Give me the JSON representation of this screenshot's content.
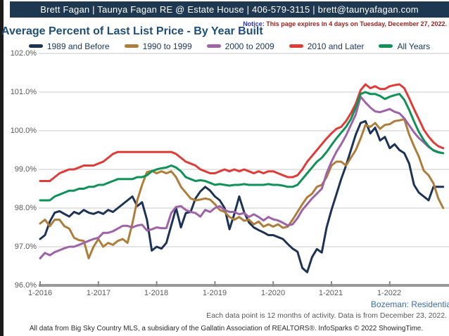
{
  "header": {
    "agent_banner": "Brett Fagan | Taunya Fagan RE @ Estate House | 406-579-3115 | brett@taunyafagan.com"
  },
  "notice": {
    "label": "Notice:",
    "text": " This page expires in 4 days on Tuesday, December 27, 2022."
  },
  "title": "Average Percent of Last List Price - By Year Built",
  "chart_data": {
    "type": "line",
    "title": "Average Percent of Last List Price - By Year Built",
    "x_unit": "month",
    "x_start": "1-2016",
    "x_end": "12-2022",
    "x_tick_labels": [
      "1-2016",
      "1-2017",
      "1-2018",
      "1-2019",
      "1-2020",
      "1-2021",
      "1-2022"
    ],
    "x_tick_month_indices": [
      0,
      12,
      24,
      36,
      48,
      60,
      72
    ],
    "ylim": [
      96.0,
      102.0
    ],
    "y_tick_values": [
      102,
      101,
      100,
      99,
      98,
      97,
      96
    ],
    "y_tick_labels": [
      "102.0%",
      "101.0%",
      "100.0%",
      "99.0%",
      "98.0%",
      "97.0%",
      "96.0%"
    ],
    "grid": "horizontal",
    "legend_position": "top",
    "series": [
      {
        "name": "1989 and Before",
        "color": "#1d3356",
        "values": [
          97.2,
          97.3,
          97.65,
          97.88,
          97.92,
          97.85,
          97.78,
          97.9,
          97.85,
          97.95,
          97.88,
          97.85,
          97.9,
          97.85,
          97.95,
          97.9,
          98.0,
          98.1,
          98.2,
          98.3,
          98.05,
          98.15,
          97.7,
          96.9,
          97.0,
          96.95,
          97.1,
          97.55,
          98.0,
          97.5,
          97.87,
          97.9,
          98.25,
          98.43,
          98.55,
          98.45,
          98.3,
          98.2,
          98.0,
          97.45,
          97.85,
          98.3,
          97.9,
          97.63,
          97.5,
          97.43,
          97.37,
          97.3,
          97.3,
          97.25,
          97.2,
          97.07,
          96.95,
          96.87,
          96.45,
          96.34,
          96.73,
          96.94,
          96.85,
          97.5,
          97.95,
          98.35,
          98.75,
          99.1,
          99.5,
          99.9,
          100.2,
          100.25,
          99.93,
          100.08,
          99.75,
          99.84,
          99.55,
          99.65,
          99.5,
          99.42,
          99.15,
          98.6,
          98.4,
          98.3,
          98.2,
          98.55,
          98.55,
          98.55
        ]
      },
      {
        "name": "1990 to 1999",
        "color": "#ae7d3a",
        "values": [
          97.6,
          97.7,
          97.53,
          97.7,
          97.7,
          97.53,
          97.47,
          97.23,
          97.17,
          97.15,
          96.7,
          97.0,
          97.2,
          97.0,
          97.1,
          97.05,
          97.15,
          97.2,
          97.1,
          97.6,
          98.2,
          98.6,
          98.93,
          98.96,
          98.9,
          98.95,
          98.9,
          98.95,
          98.8,
          98.55,
          98.4,
          98.25,
          98.2,
          98.22,
          98.25,
          98.22,
          98.1,
          97.95,
          97.9,
          97.77,
          97.7,
          97.77,
          97.67,
          97.7,
          97.58,
          97.65,
          97.52,
          97.58,
          97.52,
          97.58,
          97.49,
          97.52,
          97.7,
          97.9,
          98.1,
          98.28,
          98.37,
          98.55,
          98.6,
          98.8,
          99.1,
          99.2,
          99.2,
          99.1,
          99.3,
          99.5,
          99.8,
          100.15,
          100.1,
          100.2,
          100.05,
          100.15,
          100.17,
          100.25,
          100.27,
          100.3,
          99.9,
          99.6,
          99.33,
          98.97,
          98.85,
          98.64,
          98.25,
          98.0
        ]
      },
      {
        "name": "2000 to 2009",
        "color": "#9e62a8",
        "values": [
          96.7,
          96.84,
          96.78,
          96.86,
          96.91,
          96.96,
          97.0,
          97.0,
          97.05,
          97.1,
          97.15,
          97.2,
          97.23,
          97.36,
          97.36,
          97.4,
          97.47,
          97.54,
          97.54,
          97.5,
          97.55,
          97.57,
          97.42,
          97.45,
          97.5,
          97.48,
          97.48,
          97.87,
          98.03,
          98.05,
          97.95,
          97.9,
          97.87,
          97.78,
          97.95,
          97.9,
          98.0,
          98.05,
          97.95,
          97.9,
          97.9,
          97.84,
          97.87,
          97.77,
          97.84,
          97.77,
          97.68,
          97.77,
          97.71,
          97.68,
          97.62,
          97.55,
          97.58,
          97.74,
          97.95,
          98.1,
          98.25,
          98.37,
          98.5,
          98.9,
          99.2,
          99.45,
          99.65,
          99.88,
          100.15,
          100.42,
          100.88,
          100.73,
          100.6,
          100.5,
          100.48,
          100.52,
          100.56,
          100.49,
          100.45,
          100.32,
          100.14,
          99.96,
          99.81,
          99.7,
          99.58,
          99.5,
          99.45,
          99.42
        ]
      },
      {
        "name": "2010 and Later",
        "color": "#e03b36",
        "values": [
          98.7,
          98.7,
          98.7,
          98.8,
          98.9,
          98.95,
          99.0,
          99.0,
          99.05,
          99.1,
          99.1,
          99.1,
          99.15,
          99.2,
          99.3,
          99.4,
          99.45,
          99.45,
          99.45,
          99.45,
          99.45,
          99.45,
          99.45,
          99.45,
          99.45,
          99.45,
          99.45,
          99.45,
          99.4,
          99.3,
          99.2,
          99.15,
          99.1,
          99.0,
          98.95,
          98.9,
          98.9,
          98.95,
          99.0,
          98.95,
          99.0,
          98.95,
          99.0,
          98.95,
          98.9,
          98.95,
          98.9,
          98.95,
          98.95,
          98.9,
          98.85,
          98.8,
          98.8,
          98.85,
          99.0,
          99.2,
          99.35,
          99.5,
          99.65,
          99.8,
          99.93,
          100.05,
          100.1,
          100.25,
          100.45,
          100.7,
          101.05,
          101.2,
          101.1,
          101.15,
          101.08,
          101.08,
          101.15,
          101.18,
          101.2,
          101.1,
          100.84,
          100.56,
          100.3,
          100.03,
          99.85,
          99.7,
          99.6,
          99.55
        ]
      },
      {
        "name": "All Years",
        "color": "#0e9258",
        "values": [
          98.2,
          98.2,
          98.2,
          98.3,
          98.35,
          98.4,
          98.45,
          98.45,
          98.5,
          98.5,
          98.55,
          98.55,
          98.6,
          98.6,
          98.65,
          98.7,
          98.75,
          98.75,
          98.75,
          98.75,
          98.8,
          98.8,
          98.85,
          98.95,
          99.0,
          99.03,
          99.05,
          99.1,
          99.05,
          98.95,
          98.8,
          98.75,
          98.7,
          98.72,
          98.7,
          98.65,
          98.6,
          98.62,
          98.6,
          98.58,
          98.6,
          98.6,
          98.62,
          98.6,
          98.6,
          98.6,
          98.6,
          98.62,
          98.6,
          98.6,
          98.58,
          98.55,
          98.55,
          98.6,
          98.75,
          98.9,
          99.05,
          99.2,
          99.3,
          99.45,
          99.63,
          99.8,
          99.95,
          100.1,
          100.3,
          100.6,
          100.95,
          101.0,
          100.95,
          100.95,
          100.9,
          100.82,
          100.88,
          100.92,
          100.95,
          100.8,
          100.54,
          100.24,
          99.97,
          99.76,
          99.6,
          99.49,
          99.44,
          99.42
        ]
      }
    ]
  },
  "footer": {
    "market_label": "Bozeman: Residentia",
    "data_note": "Each data point is 12 months of activity. Data is from December 23, 2022.",
    "attribution": "All data from Big Sky Country MLS, a subsidiary of the Gallatin Association of REALTORS®. InfoSparks © 2022 ShowingTime."
  }
}
